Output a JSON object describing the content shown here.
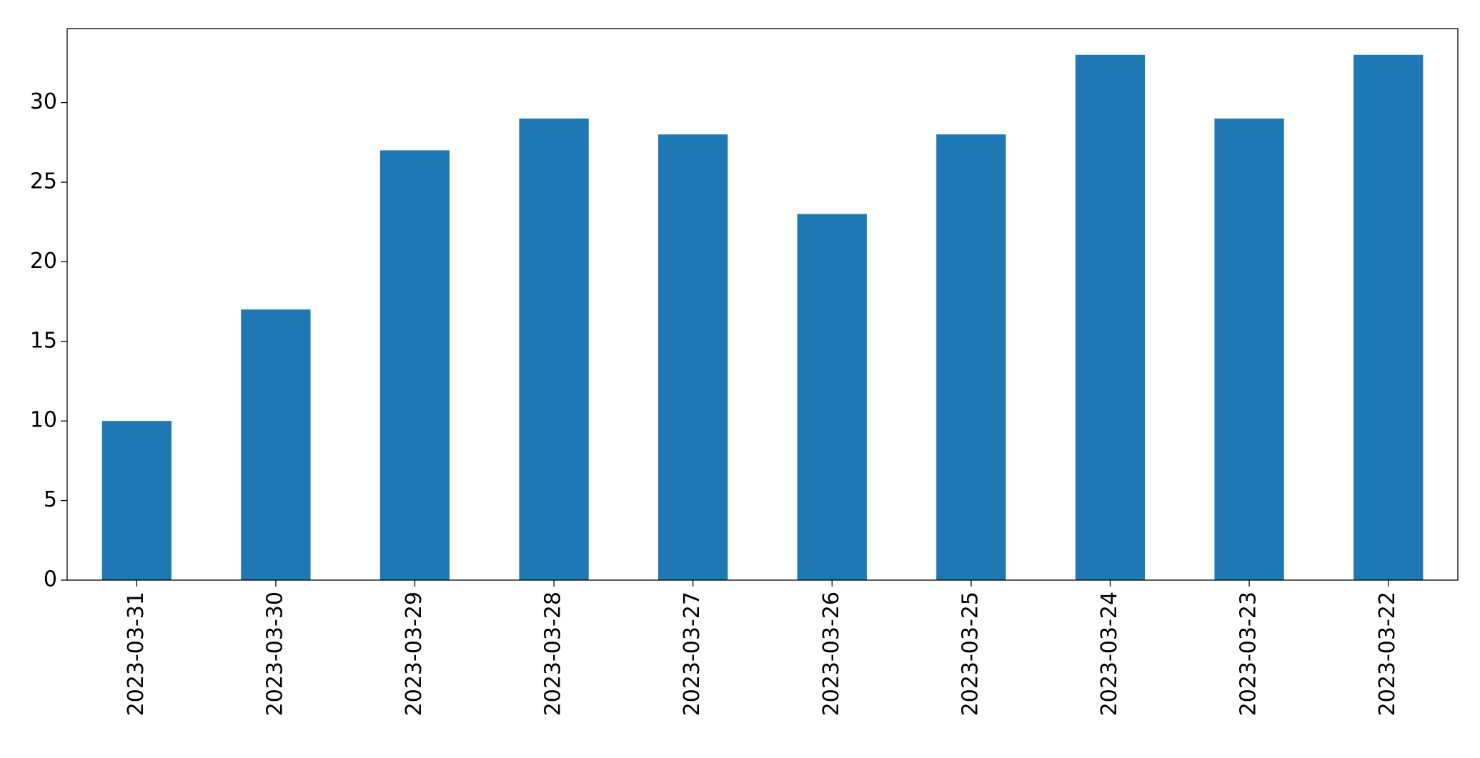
{
  "chart_data": {
    "type": "bar",
    "categories": [
      "2023-03-31",
      "2023-03-30",
      "2023-03-29",
      "2023-03-28",
      "2023-03-27",
      "2023-03-26",
      "2023-03-25",
      "2023-03-24",
      "2023-03-23",
      "2023-03-22"
    ],
    "values": [
      10,
      17,
      27,
      29,
      28,
      23,
      28,
      33,
      29,
      33
    ],
    "color": "#1f77b4",
    "ylim": [
      0,
      34.65
    ],
    "yticks": [
      0,
      5,
      10,
      15,
      20,
      25,
      30
    ],
    "grid": false
  }
}
